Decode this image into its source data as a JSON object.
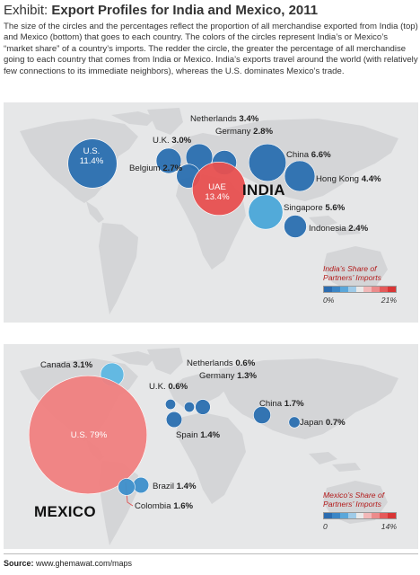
{
  "title": {
    "prefix": "Exhibit: ",
    "main": "Export Profiles for India and Mexico, 2011"
  },
  "intro": "The size of the circles and the percentages reflect the proportion of all merchandise exported from India (top) and Mexico (bottom) that goes to each country. The colors of the circles represent India’s or Mexico’s “market share” of a country’s imports. The redder the circle, the greater the percentage of all merchandise going to each country that comes from India or Mexico. India’s exports travel around the world (with relatively few connections to its immediate neighbors), whereas the U.S. dominates Mexico’s trade.",
  "colors": {
    "panel_bg": "#e6e7e8",
    "land": "#d4d5d7",
    "blue_dark": "#2a6fb0",
    "blue_mid": "#3d8fcb",
    "blue_light": "#5db7e3",
    "red_strong": "#e85050",
    "red_light": "#f08080",
    "connector": "#e05a5a"
  },
  "legend_scale": [
    "#2b6cb0",
    "#3b86c6",
    "#5aa7da",
    "#9fcbe8",
    "#e9e9e9",
    "#f2b8b8",
    "#ec8b8b",
    "#e55a5a",
    "#d93535"
  ],
  "india": {
    "country_label": "INDIA",
    "legend": {
      "title_line1": "India’s Share of",
      "title_line2": "Partners’ Imports",
      "min": "0%",
      "max": "21%"
    },
    "partners": [
      {
        "id": "us",
        "name": "U.S.",
        "pct": "11.4%",
        "value": 11.4,
        "color": "#2a6fb0",
        "label_inside": true
      },
      {
        "id": "uk",
        "name": "U.K.",
        "pct": "3.0%",
        "value": 3.0,
        "color": "#2a6fb0"
      },
      {
        "id": "netherlands",
        "name": "Netherlands",
        "pct": "3.4%",
        "value": 3.4,
        "color": "#2a6fb0"
      },
      {
        "id": "germany",
        "name": "Germany",
        "pct": "2.8%",
        "value": 2.8,
        "color": "#2a6fb0"
      },
      {
        "id": "belgium",
        "name": "Belgium",
        "pct": "2.7%",
        "value": 2.7,
        "color": "#2a6fb0"
      },
      {
        "id": "uae",
        "name": "UAE",
        "pct": "13.4%",
        "value": 13.4,
        "color": "#e85050",
        "label_inside": true
      },
      {
        "id": "china",
        "name": "China",
        "pct": "6.6%",
        "value": 6.6,
        "color": "#2a6fb0"
      },
      {
        "id": "hongkong",
        "name": "Hong Kong",
        "pct": "4.4%",
        "value": 4.4,
        "color": "#2a6fb0"
      },
      {
        "id": "singapore",
        "name": "Singapore",
        "pct": "5.6%",
        "value": 5.6,
        "color": "#4aa6d8"
      },
      {
        "id": "indonesia",
        "name": "Indonesia",
        "pct": "2.4%",
        "value": 2.4,
        "color": "#2a6fb0"
      }
    ]
  },
  "mexico": {
    "country_label": "MEXICO",
    "legend": {
      "title_line1": "Mexico’s Share of",
      "title_line2": "Partners’ Imports",
      "min": "0",
      "max": "14%"
    },
    "partners": [
      {
        "id": "canada",
        "name": "Canada",
        "pct": "3.1%",
        "value": 3.1,
        "color": "#5db7e3"
      },
      {
        "id": "us",
        "name": "U.S.",
        "pct": "79%",
        "value": 79,
        "color": "#f08080",
        "label_inside": true
      },
      {
        "id": "uk",
        "name": "U.K.",
        "pct": "0.6%",
        "value": 0.6,
        "color": "#2a6fb0"
      },
      {
        "id": "netherlands",
        "name": "Netherlands",
        "pct": "0.6%",
        "value": 0.6,
        "color": "#2a6fb0"
      },
      {
        "id": "germany",
        "name": "Germany",
        "pct": "1.3%",
        "value": 1.3,
        "color": "#2a6fb0"
      },
      {
        "id": "spain",
        "name": "Spain",
        "pct": "1.4%",
        "value": 1.4,
        "color": "#2a6fb0"
      },
      {
        "id": "china",
        "name": "China",
        "pct": "1.7%",
        "value": 1.7,
        "color": "#2a6fb0"
      },
      {
        "id": "japan",
        "name": "Japan",
        "pct": "0.7%",
        "value": 0.7,
        "color": "#2a6fb0"
      },
      {
        "id": "brazil",
        "name": "Brazil",
        "pct": "1.4%",
        "value": 1.4,
        "color": "#3d8fcb"
      },
      {
        "id": "colombia",
        "name": "Colombia",
        "pct": "1.6%",
        "value": 1.6,
        "color": "#3d8fcb"
      }
    ]
  },
  "source": {
    "label": "Source:",
    "text": " www.ghemawat.com/maps"
  }
}
